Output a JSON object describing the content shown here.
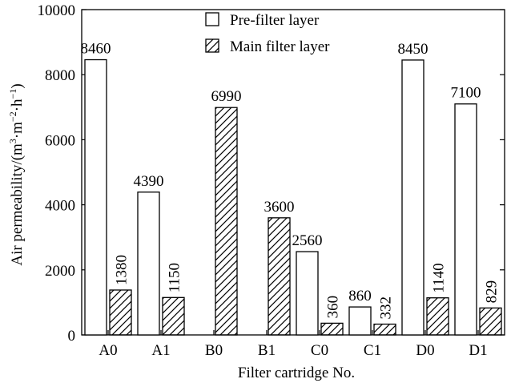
{
  "chart_data": {
    "type": "bar",
    "title": "",
    "xlabel": "Filter cartridge No.",
    "ylabel_main": "Air permeability/(m",
    "ylabel_sup1": "3",
    "ylabel_mid": "·m",
    "ylabel_sup2": "−2",
    "ylabel_mid2": "·h",
    "ylabel_sup3": "−1",
    "ylabel_end": ")",
    "ylim": [
      0,
      10000
    ],
    "yticks": [
      0,
      2000,
      4000,
      6000,
      8000,
      10000
    ],
    "ytick_labels": [
      "0",
      "2000",
      "4000",
      "6000",
      "8000",
      "10000"
    ],
    "categories": [
      "A0",
      "A1",
      "B0",
      "B1",
      "C0",
      "C1",
      "D0",
      "D1"
    ],
    "series": [
      {
        "name": "Pre-filter layer",
        "pattern": "plain",
        "values": [
          8460,
          4390,
          null,
          null,
          2560,
          860,
          8450,
          7100
        ],
        "labels": [
          "8460",
          "4390",
          "",
          "",
          "2560",
          "860",
          "8450",
          "7100"
        ]
      },
      {
        "name": "Main filter layer",
        "pattern": "hatched",
        "values": [
          1380,
          1150,
          6990,
          3600,
          360,
          332,
          1140,
          829
        ],
        "labels": [
          "1380",
          "1150",
          "6990",
          "3600",
          "360",
          "332",
          "1140",
          "829"
        ]
      }
    ],
    "legend_position": "top-center",
    "grid": false,
    "colors": {
      "fill": "#ffffff",
      "stroke": "#000000"
    }
  }
}
